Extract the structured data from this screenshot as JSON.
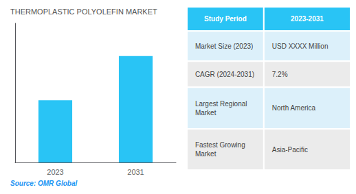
{
  "chart_data": {
    "type": "bar",
    "title": "THERMOPLASTIC POLYOLEFIN MARKET",
    "categories": [
      "2023",
      "2031"
    ],
    "values": [
      0.38,
      0.65
    ],
    "color": "#29C4F5",
    "ylim": [
      0,
      0.85
    ],
    "yticks": [],
    "grid": false,
    "tick_labels": "x",
    "source": "Source: OMR Global",
    "table": [
      [
        "Study Period",
        "2023-2031"
      ],
      [
        "Market Size (2023)",
        "USD XXXX Million"
      ],
      [
        "CAGR (2024-2031)",
        "7.2%"
      ],
      [
        "Largest Regional\nMarket",
        "North America"
      ],
      [
        "Fastest Growing\nMarket",
        "Asia-Pacific"
      ]
    ]
  }
}
